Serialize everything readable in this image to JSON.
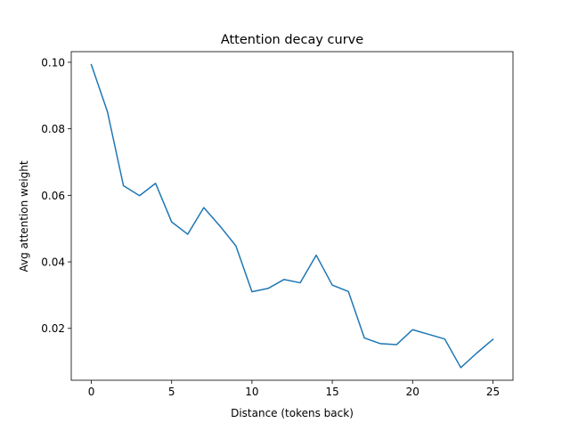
{
  "chart_data": {
    "type": "line",
    "title": "Attention decay curve",
    "xlabel": "Distance (tokens back)",
    "ylabel": "Avg attention weight",
    "xlim": [
      -1.25,
      26.25
    ],
    "ylim": [
      0.0044,
      0.1032
    ],
    "xticks": [
      0,
      5,
      10,
      15,
      20,
      25
    ],
    "xtick_labels": [
      "0",
      "5",
      "10",
      "15",
      "20",
      "25"
    ],
    "yticks": [
      0.02,
      0.04,
      0.06,
      0.08,
      0.1
    ],
    "ytick_labels": [
      "0.02",
      "0.04",
      "0.06",
      "0.08",
      "0.10"
    ],
    "grid": false,
    "series": [
      {
        "color": "#1f77b4",
        "x": [
          0,
          1,
          2,
          3,
          4,
          5,
          6,
          7,
          8,
          9,
          10,
          11,
          12,
          13,
          14,
          15,
          16,
          17,
          18,
          19,
          20,
          21,
          22,
          23,
          24,
          25
        ],
        "values": [
          0.0993,
          0.0852,
          0.0629,
          0.0599,
          0.0636,
          0.052,
          0.0483,
          0.0563,
          0.0508,
          0.0448,
          0.031,
          0.032,
          0.0347,
          0.0337,
          0.042,
          0.033,
          0.0311,
          0.0171,
          0.0154,
          0.0151,
          0.0196,
          0.0182,
          0.0168,
          0.0082,
          0.0126,
          0.0167
        ]
      }
    ]
  }
}
